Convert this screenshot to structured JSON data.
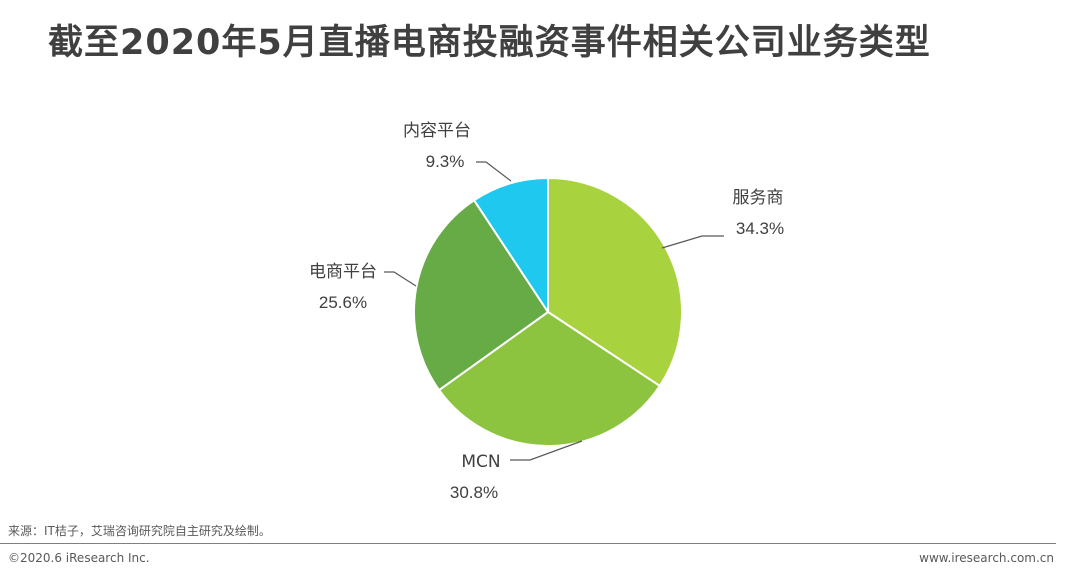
{
  "title": "截至2020年5月直播电商投融资事件相关公司业务类型",
  "chart_data": {
    "type": "pie",
    "title": "截至2020年5月直播电商投融资事件相关公司业务类型",
    "slices": [
      {
        "label": "服务商",
        "value": 34.3,
        "display": "34.3%",
        "color": "#a9d23f"
      },
      {
        "label": "MCN",
        "value": 30.8,
        "display": "30.8%",
        "color": "#8cc43f"
      },
      {
        "label": "电商平台",
        "value": 25.6,
        "display": "25.6%",
        "color": "#66ab45"
      },
      {
        "label": "内容平台",
        "value": 9.3,
        "display": "9.3%",
        "color": "#1fc8ef"
      }
    ],
    "start": "12 o'clock",
    "direction": "clockwise",
    "labels": "outside with leader lines",
    "legend": "none"
  },
  "footer": {
    "source": "来源：IT桔子，艾瑞咨询研究院自主研究及绘制。",
    "copyright": "©2020.6 iResearch Inc.",
    "website": "www.iresearch.com.cn"
  }
}
